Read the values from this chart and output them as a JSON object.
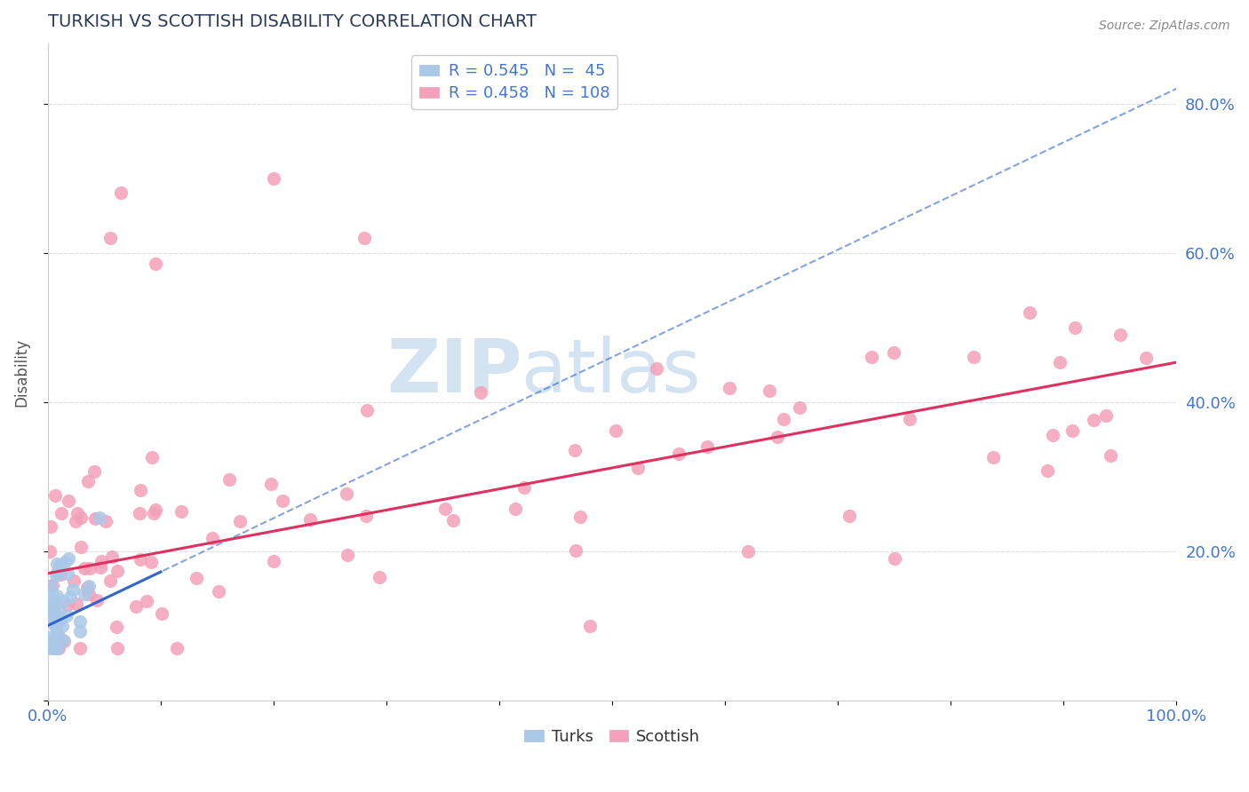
{
  "title": "TURKISH VS SCOTTISH DISABILITY CORRELATION CHART",
  "source_text": "Source: ZipAtlas.com",
  "ylabel": "Disability",
  "xlim": [
    0,
    1.0
  ],
  "ylim": [
    0,
    0.88
  ],
  "turks_R": 0.545,
  "turks_N": 45,
  "scottish_R": 0.458,
  "scottish_N": 108,
  "turks_color": "#aac8e8",
  "scottish_color": "#f4a0b8",
  "turks_line_color": "#3366cc",
  "scottish_line_color": "#e03060",
  "legend_text_color": "#4477cc",
  "title_color": "#2a3a5a",
  "axis_label_color": "#4477cc",
  "background_color": "#ffffff",
  "watermark_color": "#d0e0f0",
  "grid_color": "#dddddd"
}
